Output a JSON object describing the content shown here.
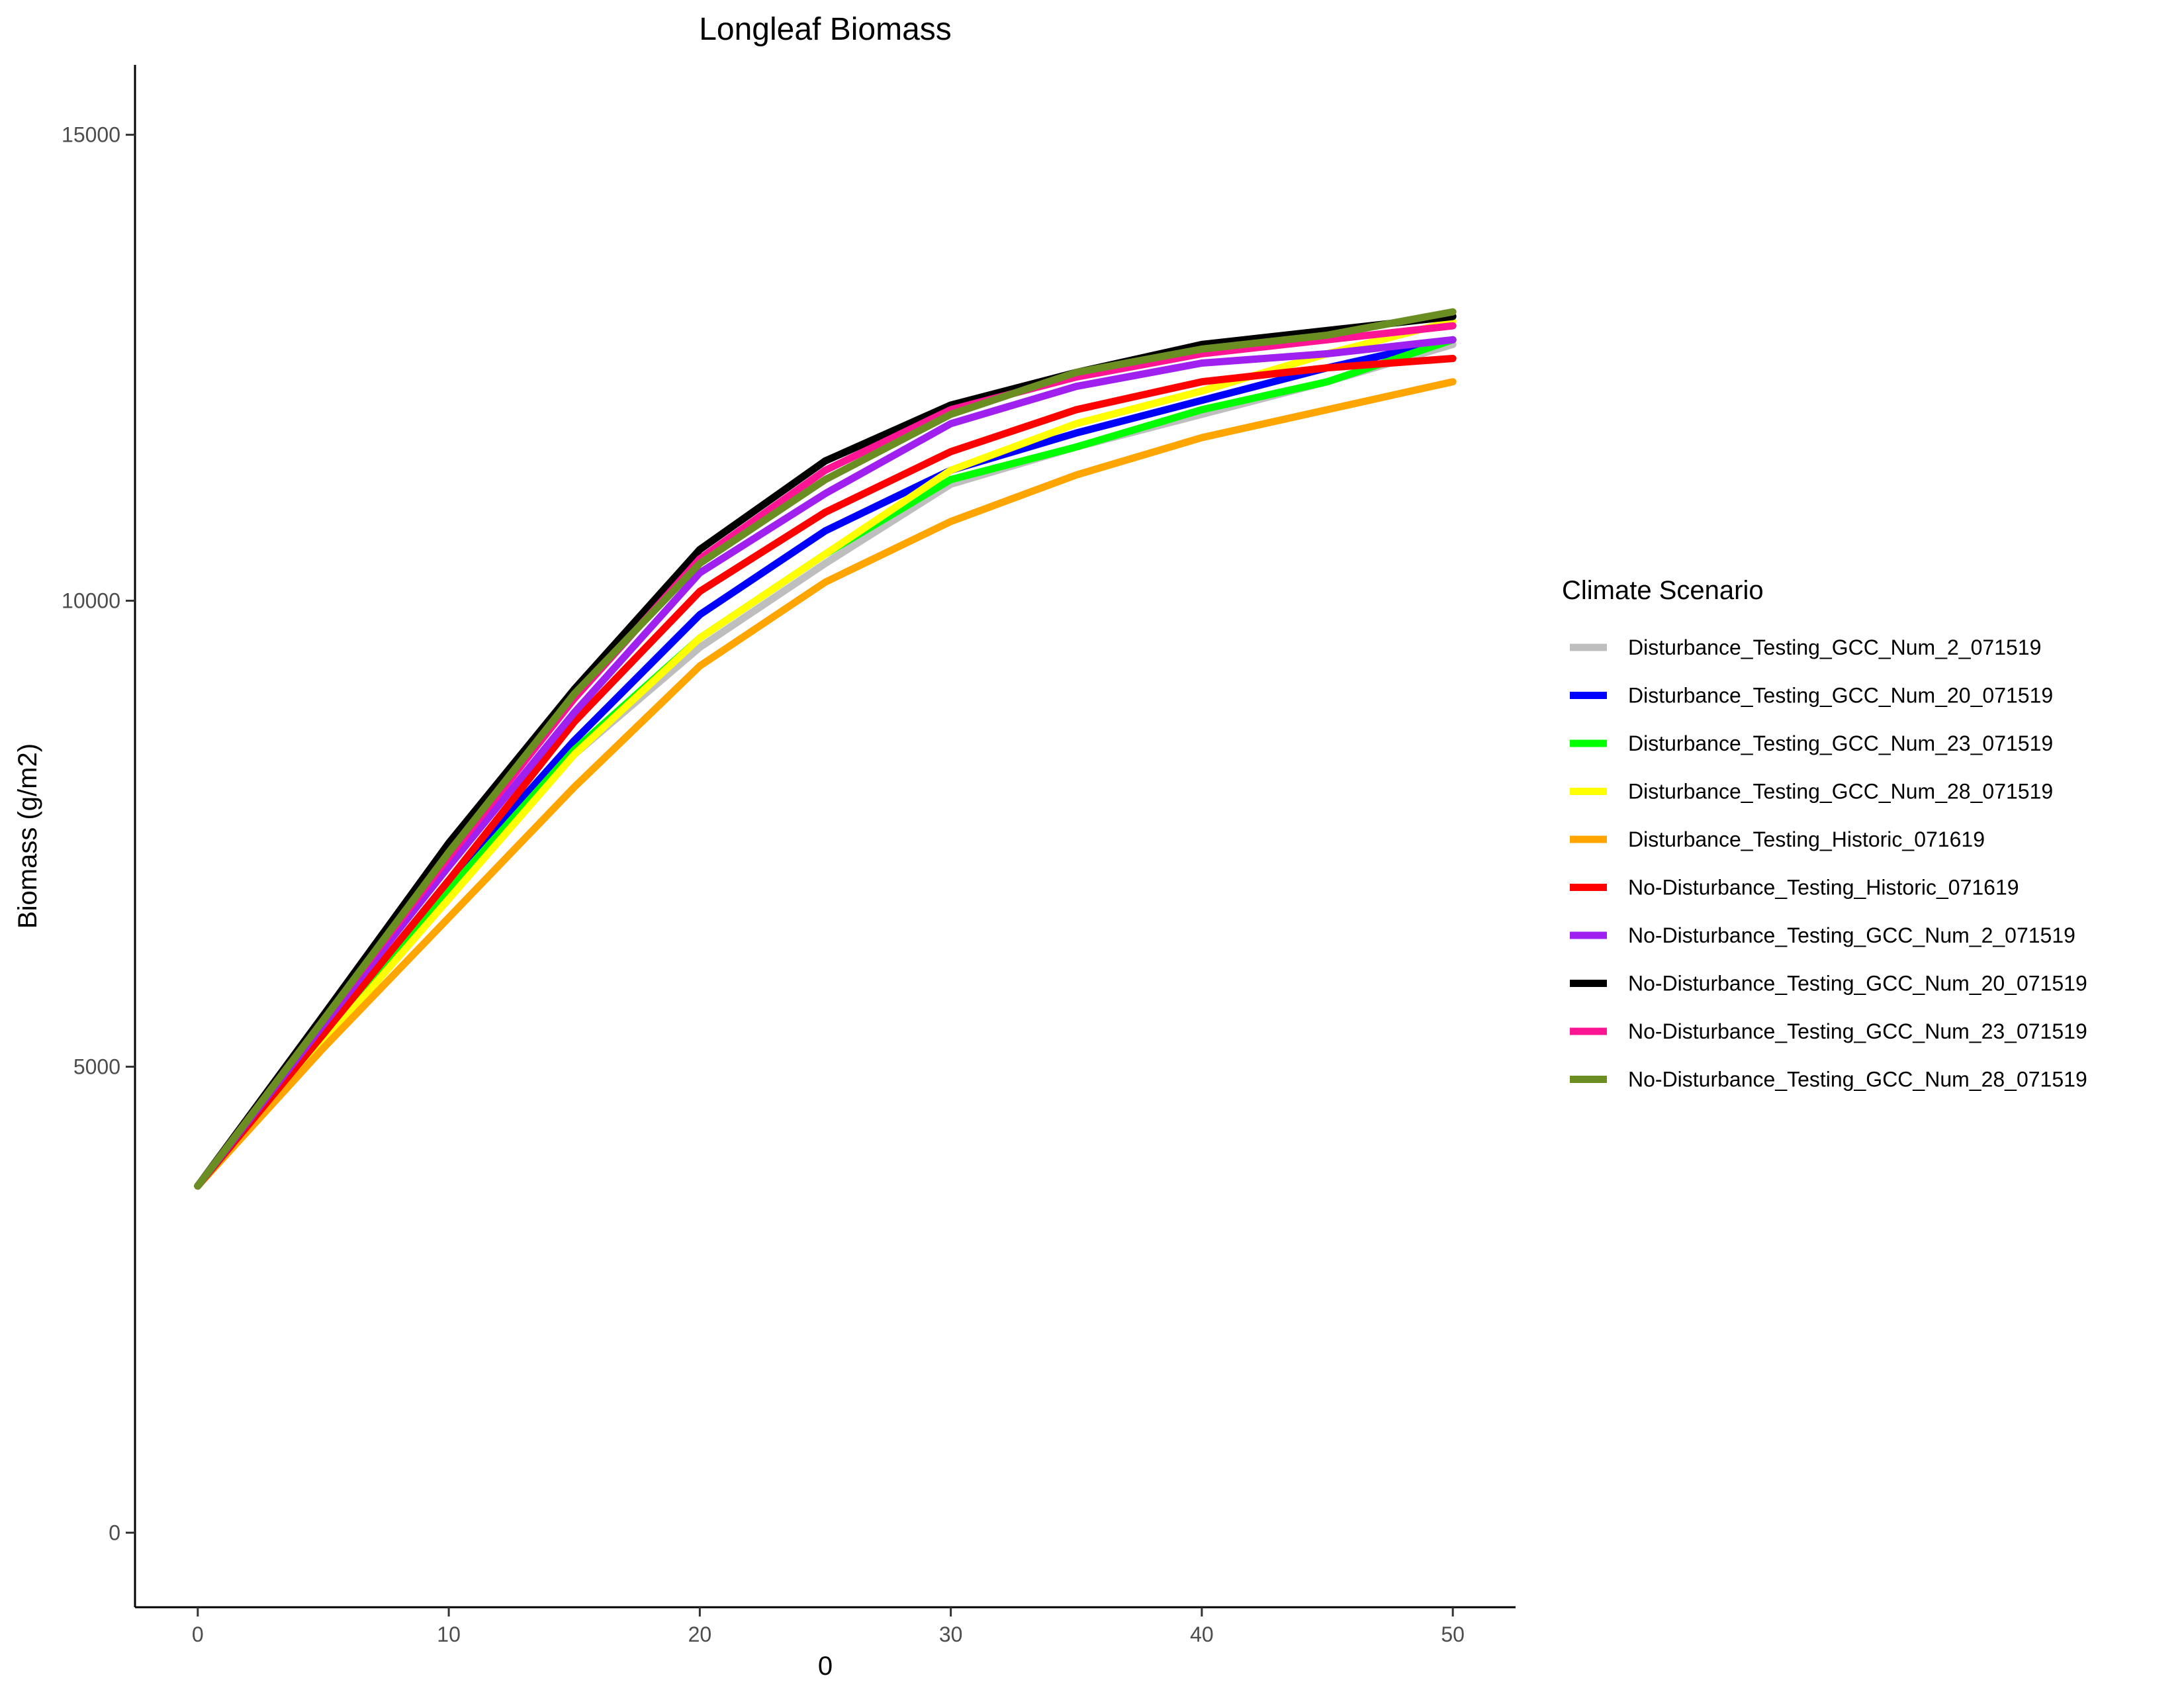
{
  "chart_data": {
    "type": "line",
    "title": "Longleaf Biomass",
    "xlabel": "0",
    "ylabel": "Biomass (g/m2)",
    "xlim": [
      -2.5,
      52.5
    ],
    "ylim": [
      -800,
      15750
    ],
    "x_ticks": [
      0,
      10,
      20,
      30,
      40,
      50
    ],
    "x_tick_labels": [
      "0",
      "10",
      "20",
      "30",
      "40",
      "50"
    ],
    "y_ticks": [
      0,
      5000,
      10000,
      15000
    ],
    "y_tick_labels": [
      "0",
      "5000",
      "10000",
      "15000"
    ],
    "grid": false,
    "legend": {
      "title": "Climate Scenario",
      "placement": "right"
    },
    "x": [
      0,
      5,
      10,
      15,
      20,
      25,
      30,
      35,
      40,
      45,
      50
    ],
    "series": [
      {
        "name": "Disturbance_Testing_GCC_Num_2_071519",
        "color": "#bebebe",
        "values": [
          3720,
          5300,
          6850,
          8350,
          9500,
          10400,
          11250,
          11650,
          12000,
          12350,
          12750
        ]
      },
      {
        "name": "Disturbance_Testing_GCC_Num_20_071519",
        "color": "#0000ff",
        "values": [
          3720,
          5350,
          7000,
          8500,
          9850,
          10750,
          11400,
          11800,
          12150,
          12500,
          12800
        ]
      },
      {
        "name": "Disturbance_Testing_GCC_Num_23_071519",
        "color": "#00ff00",
        "values": [
          3720,
          5300,
          6900,
          8400,
          9600,
          10500,
          11300,
          11650,
          12050,
          12350,
          12800
        ]
      },
      {
        "name": "Disturbance_Testing_GCC_Num_28_071519",
        "color": "#ffff00",
        "values": [
          3720,
          5250,
          6800,
          8350,
          9600,
          10500,
          11400,
          11900,
          12250,
          12650,
          13000
        ]
      },
      {
        "name": "Disturbance_Testing_Historic_071619",
        "color": "#ffa500",
        "values": [
          3720,
          5200,
          6600,
          8000,
          9300,
          10200,
          10850,
          11350,
          11750,
          12050,
          12350
        ]
      },
      {
        "name": "No-Disturbance_Testing_Historic_071619",
        "color": "#ff0000",
        "values": [
          3720,
          5350,
          7000,
          8700,
          10100,
          10950,
          11600,
          12050,
          12350,
          12500,
          12600
        ]
      },
      {
        "name": "No-Disturbance_Testing_GCC_Num_2_071519",
        "color": "#a020f0",
        "values": [
          3720,
          5450,
          7150,
          8800,
          10300,
          11150,
          11900,
          12300,
          12550,
          12650,
          12800
        ]
      },
      {
        "name": "No-Disturbance_Testing_GCC_Num_20_071519",
        "color": "#000000",
        "values": [
          3720,
          5550,
          7400,
          9050,
          10550,
          11500,
          12100,
          12450,
          12750,
          12900,
          13050
        ]
      },
      {
        "name": "No-Disturbance_Testing_GCC_Num_23_071519",
        "color": "#ff1493",
        "values": [
          3720,
          5500,
          7250,
          8950,
          10450,
          11400,
          12050,
          12400,
          12650,
          12800,
          12950
        ]
      },
      {
        "name": "No-Disturbance_Testing_GCC_Num_28_071519",
        "color": "#6b8e23",
        "values": [
          3720,
          5500,
          7300,
          9000,
          10400,
          11300,
          12000,
          12450,
          12700,
          12850,
          13100
        ]
      }
    ]
  }
}
